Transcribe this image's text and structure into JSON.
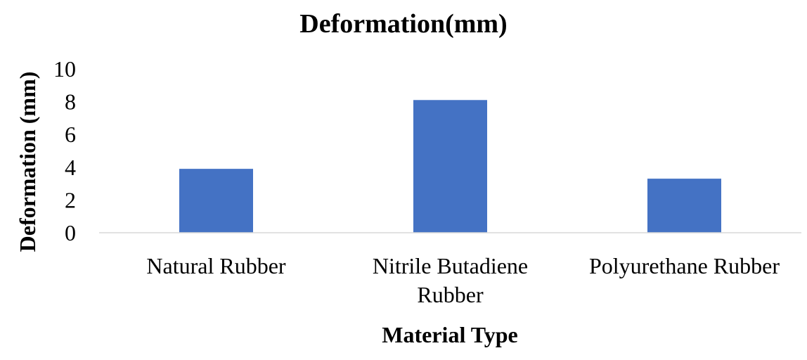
{
  "chart_data": {
    "type": "bar",
    "title": "Deformation(mm)",
    "xlabel": "Material Type",
    "ylabel": "Deformation (mm)",
    "categories": [
      [
        "Natural Rubber"
      ],
      [
        "Nitrile Butadiene",
        "Rubber"
      ],
      [
        "Polyurethane Rubber"
      ]
    ],
    "series": [
      {
        "values": [
          3.9,
          8.1,
          3.3
        ],
        "color": "#4472C4"
      }
    ],
    "ylim": [
      0,
      10
    ],
    "yticks": [
      "0",
      "2",
      "4",
      "6",
      "8",
      "10"
    ],
    "grid": false,
    "legend": "none"
  }
}
